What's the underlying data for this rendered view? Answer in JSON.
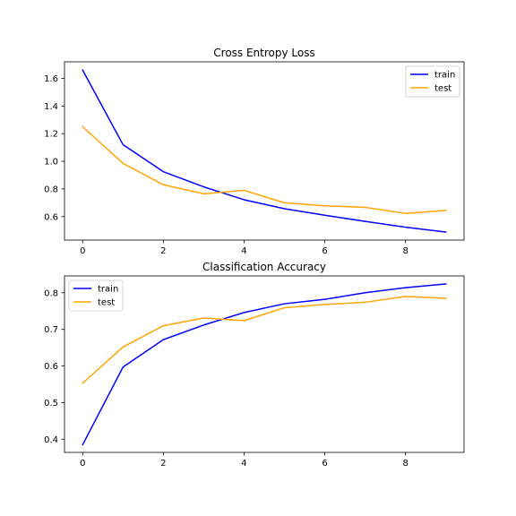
{
  "chart_data": [
    {
      "type": "line",
      "title": "Cross Entropy Loss",
      "xlabel": "",
      "ylabel": "",
      "x": [
        0,
        1,
        2,
        3,
        4,
        5,
        6,
        7,
        8,
        9
      ],
      "series": [
        {
          "name": "train",
          "color": "#0000ff",
          "values": [
            1.66,
            1.12,
            0.925,
            0.815,
            0.722,
            0.657,
            0.61,
            0.565,
            0.523,
            0.488
          ]
        },
        {
          "name": "test",
          "color": "#ffa500",
          "values": [
            1.25,
            0.985,
            0.83,
            0.765,
            0.79,
            0.7,
            0.678,
            0.667,
            0.623,
            0.645
          ]
        }
      ],
      "xlim": [
        -0.45,
        9.45
      ],
      "ylim": [
        0.43,
        1.72
      ],
      "xticks": [
        0,
        2,
        4,
        6,
        8
      ],
      "xtick_labels": [
        "0",
        "2",
        "4",
        "6",
        "8"
      ],
      "yticks": [
        0.6,
        0.8,
        1.0,
        1.2,
        1.4,
        1.6
      ],
      "ytick_labels": [
        "0.6",
        "0.8",
        "1.0",
        "1.2",
        "1.4",
        "1.6"
      ],
      "legend_position": "top-right",
      "grid": false
    },
    {
      "type": "line",
      "title": "Classification Accuracy",
      "xlabel": "",
      "ylabel": "",
      "x": [
        0,
        1,
        2,
        3,
        4,
        5,
        6,
        7,
        8,
        9
      ],
      "series": [
        {
          "name": "train",
          "color": "#0000ff",
          "values": [
            0.385,
            0.597,
            0.672,
            0.712,
            0.746,
            0.77,
            0.782,
            0.8,
            0.814,
            0.824
          ]
        },
        {
          "name": "test",
          "color": "#ffa500",
          "values": [
            0.553,
            0.652,
            0.71,
            0.731,
            0.724,
            0.759,
            0.768,
            0.774,
            0.79,
            0.785
          ]
        }
      ],
      "xlim": [
        -0.45,
        9.45
      ],
      "ylim": [
        0.364,
        0.846
      ],
      "xticks": [
        0,
        2,
        4,
        6,
        8
      ],
      "xtick_labels": [
        "0",
        "2",
        "4",
        "6",
        "8"
      ],
      "yticks": [
        0.4,
        0.5,
        0.6,
        0.7,
        0.8
      ],
      "ytick_labels": [
        "0.4",
        "0.5",
        "0.6",
        "0.7",
        "0.8"
      ],
      "legend_position": "top-left",
      "grid": false
    }
  ]
}
